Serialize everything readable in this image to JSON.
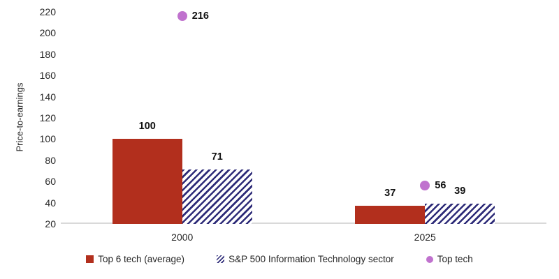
{
  "chart_data": {
    "type": "bar",
    "title": "",
    "ylabel": "Price-to-earnings",
    "categories": [
      "2000",
      "2025"
    ],
    "series": [
      {
        "name": "Top 6 tech (average)",
        "type": "bar",
        "style": "solid",
        "color": "#b22f1d",
        "values": [
          100,
          37
        ]
      },
      {
        "name": "S&P 500 Information Technology sector",
        "type": "bar",
        "style": "hatched",
        "color": "#2d2b78",
        "values": [
          71,
          39
        ]
      },
      {
        "name": "Top tech",
        "type": "scatter",
        "style": "dot",
        "color": "#c072ce",
        "values": [
          216,
          56
        ]
      }
    ],
    "ylim": [
      20,
      220
    ],
    "ytick_step": 20,
    "grid": false,
    "legend_position": "bottom",
    "axis_line_color": "#d9d9d9",
    "tick_text_color": "#262626",
    "value_label_color": "#111111"
  }
}
